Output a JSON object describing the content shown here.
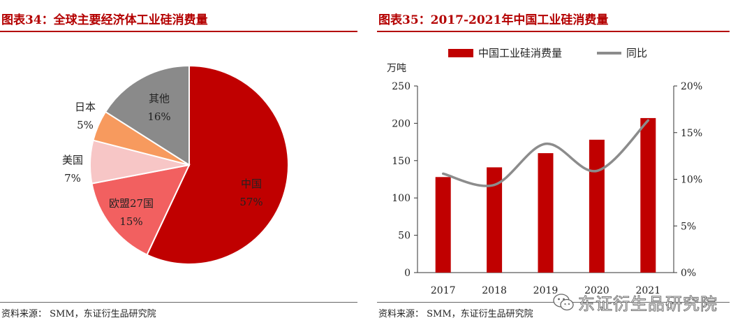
{
  "left": {
    "title": "图表34：全球主要经济体工业硅消费量",
    "source": "资料来源： SMM，东证衍生品研究院"
  },
  "right": {
    "title": "图表35：2017-2021年中国工业硅消费量",
    "source": "资料来源： SMM，东证衍生品研究院"
  },
  "watermark": {
    "text": "东证衍生品研究院",
    "icon": "wechat-icon"
  },
  "chart_data": [
    {
      "type": "pie",
      "title": "全球主要经济体工业硅消费量",
      "start_angle": "12 o'clock, clockwise",
      "slices": [
        {
          "label": "中国",
          "percent_label": "57%",
          "value": 57,
          "color": "#c00000"
        },
        {
          "label": "欧盟27国",
          "percent_label": "15%",
          "value": 15,
          "color": "#f26060"
        },
        {
          "label": "美国",
          "percent_label": "7%",
          "value": 7,
          "color": "#f7c6c6"
        },
        {
          "label": "日本",
          "percent_label": "5%",
          "value": 5,
          "color": "#f79a5e"
        },
        {
          "label": "其他",
          "percent_label": "16%",
          "value": 16,
          "color": "#8a8a8a"
        }
      ]
    },
    {
      "type": "bar",
      "title": "2017-2021年中国工业硅消费量",
      "categories": [
        "2017",
        "2018",
        "2019",
        "2020",
        "2021"
      ],
      "series": [
        {
          "name": "中国工业硅消费量",
          "type": "bar",
          "axis": "left",
          "color": "#c00000",
          "values": [
            128,
            141,
            160,
            178,
            207
          ]
        },
        {
          "name": "同比",
          "type": "line",
          "axis": "right",
          "color": "#8c8c8c",
          "smooth": true,
          "values": [
            10.6,
            9.4,
            13.8,
            10.9,
            16.3
          ]
        }
      ],
      "ylabel": "万吨",
      "ylim": [
        0,
        250
      ],
      "yticks": [
        "0",
        "50",
        "100",
        "150",
        "200",
        "250"
      ],
      "y2lim": [
        0,
        20
      ],
      "y2ticks": [
        "0%",
        "5%",
        "10%",
        "15%",
        "20%"
      ],
      "legend": {
        "position": "top",
        "items": [
          "中国工业硅消费量",
          "同比"
        ]
      },
      "grid": false
    }
  ]
}
